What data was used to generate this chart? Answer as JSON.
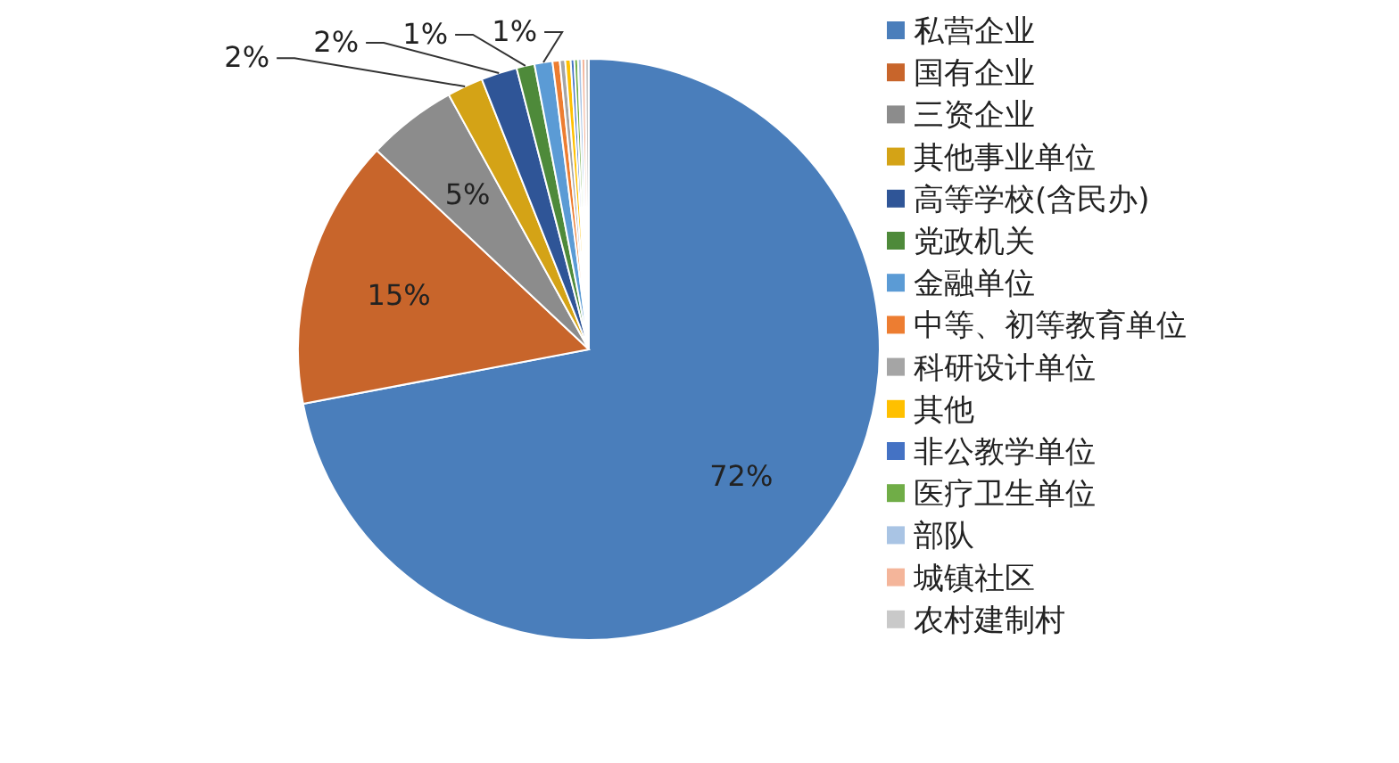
{
  "chart_data": {
    "type": "pie",
    "legend": "right",
    "categories": [
      "私营企业",
      "国有企业",
      "三资企业",
      "其他事业单位",
      "高等学校(含民办)",
      "党政机关",
      "金融单位",
      "中等、初等教育单位",
      "科研设计单位",
      "其他",
      "非公教学单位",
      "医疗卫生单位",
      "部队",
      "城镇社区",
      "农村建制村"
    ],
    "values": [
      72,
      15,
      5,
      2,
      2,
      1,
      1,
      0.4,
      0.3,
      0.3,
      0.2,
      0.2,
      0.2,
      0.2,
      0.2
    ],
    "value_labels": [
      "72%",
      "15%",
      "5%",
      "2%",
      "2%",
      "1%",
      "1%",
      null,
      null,
      null,
      null,
      null,
      null,
      null,
      null
    ],
    "colors": [
      "#4a7ebb",
      "#c8652b",
      "#8c8c8c",
      "#d4a316",
      "#2f5597",
      "#4e8a3a",
      "#5b9bd5",
      "#ed7d31",
      "#a5a5a5",
      "#ffc000",
      "#4472c4",
      "#70ad47",
      "#a9c4e4",
      "#f4b59a",
      "#c9c9c9"
    ]
  }
}
